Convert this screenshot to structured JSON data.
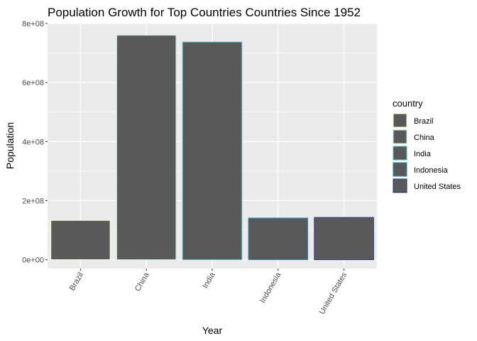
{
  "chart_data": {
    "type": "bar",
    "title": "Population Growth for Top Countries Countries Since 1952",
    "xlabel": "Year",
    "ylabel": "Population",
    "categories": [
      "Brazil",
      "China",
      "India",
      "Indonesia",
      "United States"
    ],
    "values": [
      133000000,
      760000000,
      737000000,
      141000000,
      143000000
    ],
    "ylim": [
      -30000000,
      800000000
    ],
    "yticks": [
      0,
      200000000,
      400000000,
      600000000,
      800000000
    ],
    "ytick_labels": [
      "0e+00",
      "2e+08",
      "4e+08",
      "6e+08",
      "8e+08"
    ],
    "bar_fill": "#595959",
    "outline_colors": [
      "#fdfdcf",
      "#c4ecd5",
      "#4fc5bd",
      "#1e8ec4",
      "#273693"
    ],
    "panel_background": "#ebebeb",
    "grid": true,
    "legend": {
      "title": "country",
      "placement": "right",
      "entries": [
        "Brazil",
        "China",
        "India",
        "Indonesia",
        "United States"
      ]
    }
  }
}
